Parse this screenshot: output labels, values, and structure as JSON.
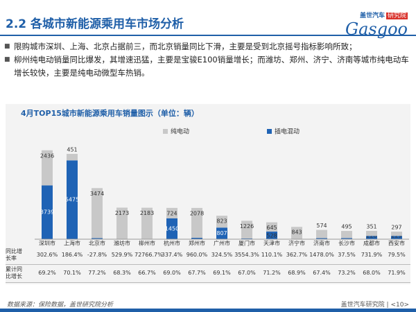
{
  "header": {
    "title": "2.2 各城市新能源乘用车市场分析",
    "logo_cn": "盖世汽车",
    "logo_tag": "研究院",
    "logo_en": "Gasgoo"
  },
  "bullets": [
    "限购城市深圳、上海、北京占据前三，而北京销量同比下滑，主要是受到北京摇号指标影响所致；",
    "柳州纯电动销量同比爆发，其增速迅猛，主要是宝骏E100销量增长；而潍坊、郑州、济宁、济南等城市纯电动车增长较快，主要是纯电动微型车热销。"
  ],
  "chart_data": {
    "type": "stacked_bar",
    "title": "4月TOP15城市新能源乘用车销量图示（单位：辆）",
    "categories": [
      "深圳市",
      "上海市",
      "北京市",
      "潍坊市",
      "柳州市",
      "杭州市",
      "郑州市",
      "广州市",
      "厦门市",
      "天津市",
      "济宁市",
      "济南市",
      "长沙市",
      "成都市",
      "西安市"
    ],
    "series": [
      {
        "name": "插电混动",
        "color": "#1f63b5",
        "values": [
          3739,
          5475,
          75,
          19,
          3,
          1450,
          95,
          807,
          53,
          528,
          13,
          71,
          81,
          228,
          229
        ]
      },
      {
        "name": "纯电动",
        "color": "#c8c8c8",
        "values": [
          2436,
          451,
          3474,
          2173,
          2183,
          724,
          2078,
          823,
          1226,
          645,
          843,
          574,
          495,
          351,
          297
        ]
      }
    ],
    "ylim": [
      0,
      6500
    ]
  },
  "table": {
    "rows": [
      {
        "label": "同比增长率",
        "cells": [
          "302.6%",
          "186.4%",
          "-27.8%",
          "529.9%",
          "72766.7%",
          "337.4%",
          "960.0%",
          "324.5%",
          "3554.3%",
          "110.1%",
          "362.7%",
          "1478.0%",
          "37.5%",
          "731.9%",
          "79.5%"
        ]
      },
      {
        "label": "累计同比增长",
        "cells": [
          "69.2%",
          "70.1%",
          "77.2%",
          "68.3%",
          "66.7%",
          "69.0%",
          "67.7%",
          "69.1%",
          "67.0%",
          "71.2%",
          "68.9%",
          "67.4%",
          "73.2%",
          "68.0%",
          "71.9%"
        ]
      }
    ]
  },
  "footer": {
    "source": "数据来源：保险数据，盖世研究院分析",
    "brand": "盖世汽车研究院",
    "page": "<10>"
  }
}
